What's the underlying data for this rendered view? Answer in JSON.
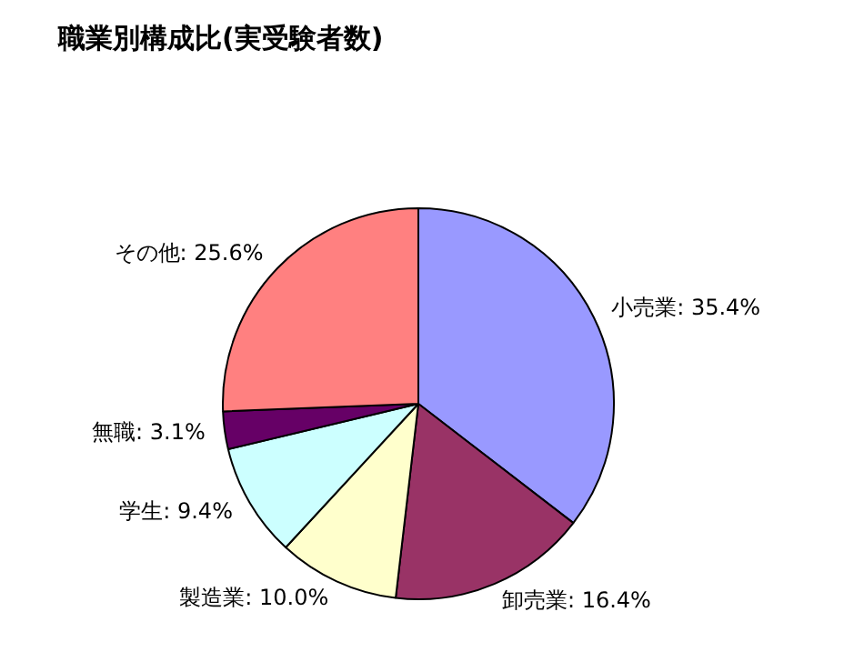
{
  "chart_data": {
    "type": "pie",
    "title": "職業別構成比(実受験者数)",
    "categories": [
      "小売業",
      "卸売業",
      "製造業",
      "学生",
      "無職",
      "その他"
    ],
    "values": [
      35.4,
      16.4,
      10.0,
      9.4,
      3.1,
      25.6
    ],
    "value_labels": [
      "35.4%",
      "16.4%",
      "10.0%",
      "9.4%",
      "3.1%",
      "25.6%"
    ],
    "colors": [
      "#9999ff",
      "#993366",
      "#ffffcc",
      "#ccffff",
      "#660066",
      "#ff8080"
    ],
    "legend": false
  }
}
